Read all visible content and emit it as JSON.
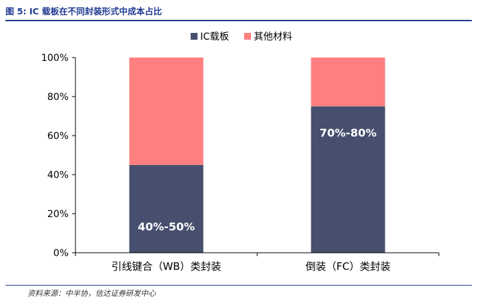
{
  "figure": {
    "title": "图 5:  IC 载板在不同封装形式中成本占比",
    "source": "资料来源：中半协，信达证券研发中心"
  },
  "chart_data": {
    "type": "bar",
    "stacked": true,
    "categories": [
      "引线键合（WB）类封装",
      "倒装（FC）类封装"
    ],
    "series": [
      {
        "name": "IC载板",
        "values": [
          45,
          75
        ],
        "color": "#474f6e"
      },
      {
        "name": "其他材料",
        "values": [
          55,
          25
        ],
        "color": "#ff7f7f"
      }
    ],
    "data_labels": [
      "40%-50%",
      "70%-80%"
    ],
    "yticks": [
      "0%",
      "20%",
      "40%",
      "60%",
      "80%",
      "100%"
    ],
    "ylim": [
      0,
      100
    ],
    "legend_position": "top-center",
    "grid": false
  }
}
